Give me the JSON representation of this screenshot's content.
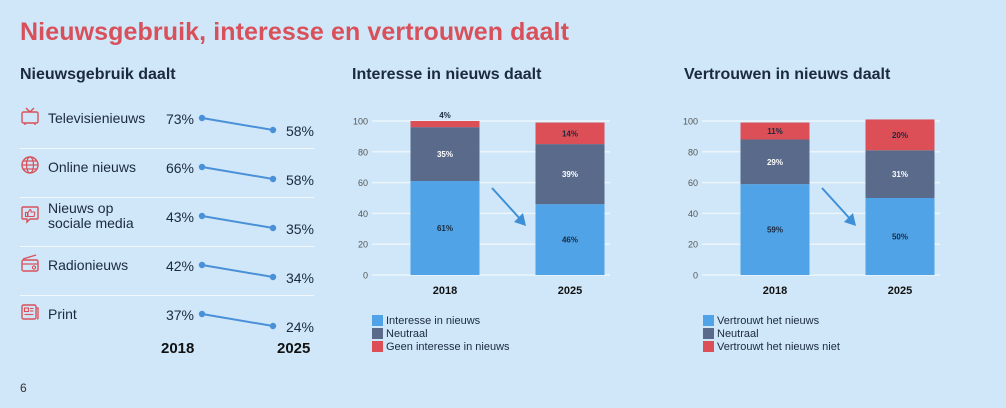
{
  "page": {
    "title": "Nieuwsgebruik, interesse en vertrouwen daalt",
    "page_number": "6"
  },
  "colors": {
    "title": "#d9505a",
    "icon": "#d9505a",
    "line": "#4a90d9",
    "positive": "#4fa3e6",
    "neutral": "#5a6a8a",
    "negative": "#dc4f57"
  },
  "usage": {
    "title": "Nieuwsgebruik daalt",
    "year_labels": [
      "2018",
      "2025"
    ],
    "rows": [
      {
        "icon": "tv-icon",
        "label": "Televisienieuws",
        "label_lines": [
          "Televisienieuws"
        ],
        "v2018": 73,
        "v2025": 58,
        "v2018_text": "73%",
        "v2025_text": "58%"
      },
      {
        "icon": "globe-icon",
        "label": "Online nieuws",
        "label_lines": [
          "Online nieuws"
        ],
        "v2018": 66,
        "v2025": 58,
        "v2018_text": "66%",
        "v2025_text": "58%"
      },
      {
        "icon": "thumbs-up-chat-icon",
        "label": "Nieuws op sociale media",
        "label_lines": [
          "Nieuws op",
          "sociale media"
        ],
        "v2018": 43,
        "v2025": 35,
        "v2018_text": "43%",
        "v2025_text": "35%"
      },
      {
        "icon": "radio-icon",
        "label": "Radionieuws",
        "label_lines": [
          "Radionieuws"
        ],
        "v2018": 42,
        "v2025": 34,
        "v2018_text": "42%",
        "v2025_text": "34%"
      },
      {
        "icon": "newspaper-icon",
        "label": "Print",
        "label_lines": [
          "Print"
        ],
        "v2018": 37,
        "v2025": 24,
        "v2018_text": "37%",
        "v2025_text": "24%"
      }
    ]
  },
  "chart_data": [
    {
      "type": "line",
      "title": "Nieuwsgebruik daalt",
      "x": [
        "2018",
        "2025"
      ],
      "series": [
        {
          "name": "Televisienieuws",
          "values": [
            73,
            58
          ]
        },
        {
          "name": "Online nieuws",
          "values": [
            66,
            58
          ]
        },
        {
          "name": "Nieuws op sociale media",
          "values": [
            43,
            35
          ]
        },
        {
          "name": "Radionieuws",
          "values": [
            42,
            34
          ]
        },
        {
          "name": "Print",
          "values": [
            37,
            24
          ]
        }
      ],
      "unit": "%"
    },
    {
      "type": "bar",
      "stacked": true,
      "title": "Interesse in nieuws daalt",
      "categories": [
        "2018",
        "2025"
      ],
      "series": [
        {
          "name": "Interesse in nieuws",
          "values": [
            61,
            46
          ],
          "labels": [
            "61%",
            "46%"
          ],
          "color": "#4fa3e6"
        },
        {
          "name": "Neutraal",
          "values": [
            35,
            39
          ],
          "labels": [
            "35%",
            "39%"
          ],
          "color": "#5a6a8a"
        },
        {
          "name": "Geen interesse in nieuws",
          "values": [
            4,
            14
          ],
          "labels": [
            "4%",
            "14%"
          ],
          "color": "#dc4f57"
        }
      ],
      "ylim": [
        0,
        100
      ],
      "yticks": [
        0,
        20,
        40,
        60,
        80,
        100
      ],
      "grid": true,
      "legend": "bottom-left",
      "annotation": "downward arrow between 2018 and 2025"
    },
    {
      "type": "bar",
      "stacked": true,
      "title": "Vertrouwen in nieuws daalt",
      "categories": [
        "2018",
        "2025"
      ],
      "series": [
        {
          "name": "Vertrouwt het nieuws",
          "values": [
            59,
            50
          ],
          "labels": [
            "59%",
            "50%"
          ],
          "color": "#4fa3e6"
        },
        {
          "name": "Neutraal",
          "values": [
            29,
            31
          ],
          "labels": [
            "29%",
            "31%"
          ],
          "color": "#5a6a8a"
        },
        {
          "name": "Vertrouwt het nieuws niet",
          "values": [
            11,
            20
          ],
          "labels": [
            "11%",
            "20%"
          ],
          "color": "#dc4f57"
        }
      ],
      "ylim": [
        0,
        100
      ],
      "yticks": [
        0,
        20,
        40,
        60,
        80,
        100
      ],
      "grid": true,
      "legend": "bottom-left",
      "annotation": "downward arrow between 2018 and 2025"
    }
  ]
}
